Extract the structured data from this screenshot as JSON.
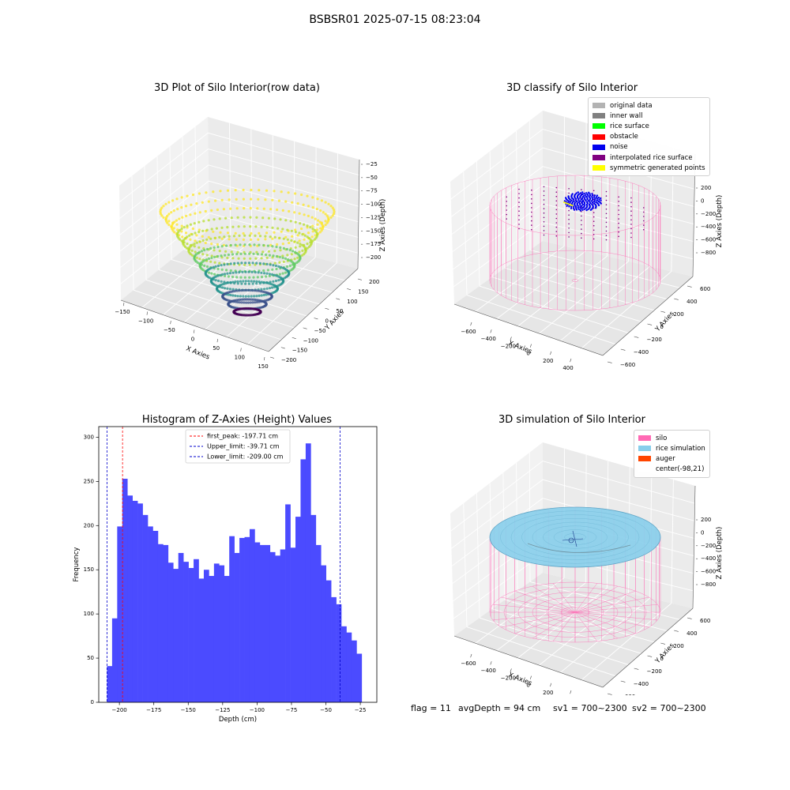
{
  "suptitle": "BSBSR01 2025-07-15 08:23:04",
  "panels": {
    "raw": {
      "title": "3D Plot of Silo Interior(row data)",
      "xlabel": "X Axies",
      "ylabel": "Y Axies",
      "zlabel": "Z Axies (Depth)",
      "xticks": [
        "−150",
        "−100",
        "−50",
        "0",
        "50",
        "100",
        "150"
      ],
      "yticks": [
        "200",
        "150",
        "100",
        "50",
        "0",
        "−50",
        "−100",
        "−150",
        "−200"
      ],
      "zticks": [
        "−25",
        "−50",
        "−75",
        "−100",
        "−125",
        "−150",
        "−175",
        "−200"
      ]
    },
    "classify": {
      "title": "3D classify of Silo Interior",
      "xlabel": "X Axies",
      "ylabel": "Y Axies",
      "zlabel": "Z Axies (Depth)",
      "xticks": [
        "−600",
        "−400",
        "−200",
        "0",
        "200",
        "400"
      ],
      "yticks": [
        "600",
        "400",
        "200",
        "0",
        "−200",
        "−400",
        "−600"
      ],
      "zticks": [
        "200",
        "0",
        "−200",
        "−400",
        "−600",
        "−800"
      ],
      "legend": [
        {
          "label": "original data",
          "color": "#b3b3b3"
        },
        {
          "label": "inner wall",
          "color": "#808080"
        },
        {
          "label": "rice surface",
          "color": "#00ff00"
        },
        {
          "label": "obstacle",
          "color": "#ff0000"
        },
        {
          "label": "noise",
          "color": "#0000ee"
        },
        {
          "label": "interpolated rice surface",
          "color": "#800080"
        },
        {
          "label": "symmetric generated points",
          "color": "#ffff00"
        }
      ]
    },
    "simulation": {
      "title": "3D simulation of Silo Interior",
      "xlabel": "X Axies",
      "ylabel": "Y Axies",
      "zlabel": "Z Axies (Depth)",
      "xticks": [
        "−600",
        "−400",
        "−200",
        "0",
        "200",
        "400"
      ],
      "yticks": [
        "600",
        "400",
        "200",
        "0",
        "−200",
        "−400",
        "−600"
      ],
      "zticks": [
        "200",
        "0",
        "−200",
        "−400",
        "−600",
        "−800"
      ],
      "legend": [
        {
          "label": "silo",
          "color": "#ff69b4"
        },
        {
          "label": "rice simulation",
          "color": "#87ceeb"
        },
        {
          "label": "auger",
          "color": "#ff4500"
        },
        {
          "label": "center(-98,21)",
          "color": "#ffffff"
        }
      ]
    }
  },
  "status": {
    "flag": "flag = 11",
    "avg_depth": "avgDepth = 94 cm",
    "sv1": "sv1 = 700~2300",
    "sv2": "sv2 = 700~2300"
  },
  "chart_data": [
    {
      "type": "bar",
      "title": "Histogram of Z-Axies (Height) Values",
      "xlabel": "Depth (cm)",
      "ylabel": "Frequency",
      "xlim": [
        -215,
        -13
      ],
      "ylim": [
        0,
        312
      ],
      "xticks": [
        -200,
        -175,
        -150,
        -125,
        -100,
        -75,
        -50,
        -25
      ],
      "yticks": [
        0,
        50,
        100,
        150,
        200,
        250,
        300
      ],
      "bin_start": -209.0,
      "bin_width": 3.7,
      "values": [
        41,
        95,
        199,
        253,
        234,
        228,
        225,
        212,
        199,
        194,
        179,
        178,
        158,
        151,
        169,
        159,
        152,
        162,
        140,
        150,
        143,
        157,
        155,
        143,
        188,
        169,
        186,
        187,
        196,
        181,
        178,
        178,
        170,
        166,
        173,
        224,
        175,
        210,
        275,
        293,
        212,
        178,
        155,
        138,
        119,
        111,
        86,
        79,
        70,
        55
      ],
      "bar_color": "#4b4bff",
      "vlines": [
        {
          "label": "first_peak: -197.71 cm",
          "x": -197.71,
          "color": "#ff0000"
        },
        {
          "label": "Upper_limit: -39.71 cm",
          "x": -39.71,
          "color": "#0000cc"
        },
        {
          "label": "Lower_limit: -209.00 cm",
          "x": -209.0,
          "color": "#0000cc"
        }
      ],
      "legend_position": "top-center"
    }
  ]
}
